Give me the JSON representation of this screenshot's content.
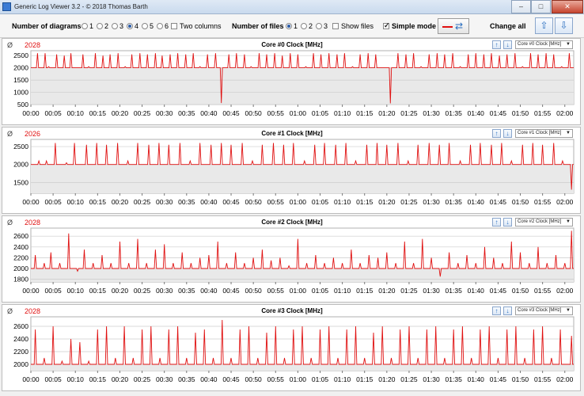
{
  "window": {
    "title": "Generic Log Viewer 3.2 - © 2018 Thomas Barth"
  },
  "toolbar": {
    "diagrams_label": "Number of diagrams",
    "diagram_options": [
      "1",
      "2",
      "3",
      "4",
      "5",
      "6"
    ],
    "diagram_selected": "4",
    "two_columns_label": "Two columns",
    "files_label": "Number of files",
    "file_options": [
      "1",
      "2",
      "3"
    ],
    "file_selected": "1",
    "show_files_label": "Show files",
    "simple_mode_label": "Simple mode",
    "change_all_label": "Change all"
  },
  "colors": {
    "series": "#e01010",
    "grid": "#cccccc",
    "plot_fill": "#e9e9e9"
  },
  "x_ticks": [
    "00:00",
    "00:05",
    "00:10",
    "00:15",
    "00:20",
    "00:25",
    "00:30",
    "00:35",
    "00:40",
    "00:45",
    "00:50",
    "00:55",
    "01:00",
    "01:05",
    "01:10",
    "01:15",
    "01:20",
    "01:25",
    "01:30",
    "01:35",
    "01:40",
    "01:45",
    "01:50",
    "01:55",
    "02:00"
  ],
  "panels": [
    {
      "avg_symbol": "Ø",
      "avg": "2028",
      "title": "Core #0 Clock [MHz]",
      "select": "Core #0 Clock [MHz]",
      "y_ticks": [
        "2500",
        "2000",
        "1500",
        "1000",
        "500"
      ]
    },
    {
      "avg_symbol": "Ø",
      "avg": "2026",
      "title": "Core #1 Clock [MHz]",
      "select": "Core #1 Clock [MHz]",
      "y_ticks": [
        "2500",
        "2000",
        "1500"
      ]
    },
    {
      "avg_symbol": "Ø",
      "avg": "2028",
      "title": "Core #2 Clock [MHz]",
      "select": "Core #2 Clock [MHz]",
      "y_ticks": [
        "2600",
        "2400",
        "2200",
        "2000",
        "1800"
      ]
    },
    {
      "avg_symbol": "Ø",
      "avg": "2028",
      "title": "Core #3 Clock [MHz]",
      "select": "Core #3 Clock [MHz]",
      "y_ticks": [
        "2600",
        "2400",
        "2200",
        "2000"
      ]
    }
  ],
  "chart_data": [
    {
      "type": "line",
      "title": "Core #0 Clock [MHz]",
      "x_range": [
        "00:00",
        "02:02"
      ],
      "ylim": [
        500,
        2700
      ],
      "baseline": 2000,
      "spikes": [
        [
          1.5,
          2600
        ],
        [
          3.2,
          2600
        ],
        [
          4,
          2050
        ],
        [
          5.8,
          2550
        ],
        [
          7.5,
          2500
        ],
        [
          9,
          2600
        ],
        [
          11.7,
          2550
        ],
        [
          13,
          2050
        ],
        [
          14.5,
          2600
        ],
        [
          16.2,
          2500
        ],
        [
          17.8,
          2550
        ],
        [
          19.6,
          2600
        ],
        [
          21.2,
          2050
        ],
        [
          22.7,
          2550
        ],
        [
          24.5,
          2600
        ],
        [
          26.2,
          2550
        ],
        [
          28,
          2600
        ],
        [
          29.5,
          2500
        ],
        [
          31.3,
          2550
        ],
        [
          33,
          2600
        ],
        [
          34.8,
          2550
        ],
        [
          36.5,
          2600
        ],
        [
          38,
          2050
        ],
        [
          39.7,
          2550
        ],
        [
          41.5,
          2600
        ],
        [
          42.8,
          560
        ],
        [
          44.5,
          2550
        ],
        [
          46.2,
          2600
        ],
        [
          48,
          2550
        ],
        [
          49.5,
          2050
        ],
        [
          51.3,
          2600
        ],
        [
          53,
          2550
        ],
        [
          54.8,
          2600
        ],
        [
          56.5,
          2500
        ],
        [
          58.3,
          2600
        ],
        [
          60,
          2550
        ],
        [
          61.8,
          2050
        ],
        [
          63.5,
          2600
        ],
        [
          65.2,
          2550
        ],
        [
          67,
          2600
        ],
        [
          68.8,
          2550
        ],
        [
          70.5,
          2600
        ],
        [
          72.3,
          2050
        ],
        [
          74,
          2550
        ],
        [
          75.8,
          2600
        ],
        [
          77.5,
          2550
        ],
        [
          80.8,
          550
        ],
        [
          82.5,
          2600
        ],
        [
          84.3,
          2550
        ],
        [
          86,
          2600
        ],
        [
          87.7,
          2050
        ],
        [
          89.5,
          2550
        ],
        [
          91.3,
          2600
        ],
        [
          93,
          2550
        ],
        [
          94.8,
          2600
        ],
        [
          96.5,
          2050
        ],
        [
          98.3,
          2550
        ],
        [
          100,
          2600
        ],
        [
          101.8,
          2550
        ],
        [
          103.5,
          2600
        ],
        [
          105.3,
          2500
        ],
        [
          107,
          2550
        ],
        [
          108.8,
          2600
        ],
        [
          110.5,
          2050
        ],
        [
          112.3,
          2600
        ],
        [
          114,
          2550
        ],
        [
          115.8,
          2600
        ],
        [
          117.5,
          2550
        ],
        [
          119.3,
          2050
        ],
        [
          121,
          2600
        ]
      ]
    },
    {
      "type": "line",
      "title": "Core #1 Clock [MHz]",
      "x_range": [
        "00:00",
        "02:02"
      ],
      "ylim": [
        1200,
        2700
      ],
      "baseline": 2000,
      "spikes": [
        [
          1.8,
          2100
        ],
        [
          3.5,
          2100
        ],
        [
          5.5,
          2600
        ],
        [
          8,
          2050
        ],
        [
          9.8,
          2600
        ],
        [
          12.5,
          2550
        ],
        [
          14.8,
          2600
        ],
        [
          17,
          2550
        ],
        [
          19.5,
          2600
        ],
        [
          21.8,
          2100
        ],
        [
          24,
          2600
        ],
        [
          26.5,
          2550
        ],
        [
          28.8,
          2600
        ],
        [
          31,
          2550
        ],
        [
          33.5,
          2600
        ],
        [
          35.8,
          2100
        ],
        [
          38,
          2600
        ],
        [
          40.5,
          2550
        ],
        [
          42.8,
          2600
        ],
        [
          45,
          2550
        ],
        [
          47.5,
          2600
        ],
        [
          49.8,
          2100
        ],
        [
          52,
          2550
        ],
        [
          54.5,
          2600
        ],
        [
          56.8,
          2550
        ],
        [
          59,
          2600
        ],
        [
          61.5,
          2100
        ],
        [
          63.8,
          2550
        ],
        [
          66,
          2600
        ],
        [
          68.5,
          2550
        ],
        [
          70.8,
          2600
        ],
        [
          73,
          2100
        ],
        [
          75.5,
          2550
        ],
        [
          77.8,
          2600
        ],
        [
          80,
          2550
        ],
        [
          82.5,
          2600
        ],
        [
          84.8,
          2100
        ],
        [
          87,
          2550
        ],
        [
          89.5,
          2600
        ],
        [
          91.8,
          2550
        ],
        [
          94,
          2600
        ],
        [
          96.5,
          2100
        ],
        [
          98.8,
          2550
        ],
        [
          101,
          2600
        ],
        [
          103.5,
          2550
        ],
        [
          105.8,
          2600
        ],
        [
          108,
          2100
        ],
        [
          110.5,
          2550
        ],
        [
          112.8,
          2600
        ],
        [
          115,
          2550
        ],
        [
          117.5,
          2600
        ],
        [
          119.5,
          2100
        ],
        [
          121.5,
          1300
        ]
      ]
    },
    {
      "type": "line",
      "title": "Core #2 Clock [MHz]",
      "x_range": [
        "00:00",
        "02:02"
      ],
      "ylim": [
        1750,
        2750
      ],
      "baseline": 2000,
      "spikes": [
        [
          1,
          2250
        ],
        [
          3,
          2100
        ],
        [
          4.5,
          2300
        ],
        [
          6.5,
          2100
        ],
        [
          8.5,
          2650
        ],
        [
          10.5,
          1950
        ],
        [
          12,
          2350
        ],
        [
          14,
          2100
        ],
        [
          16,
          2250
        ],
        [
          18,
          2100
        ],
        [
          20,
          2500
        ],
        [
          22,
          2100
        ],
        [
          24,
          2550
        ],
        [
          26,
          2100
        ],
        [
          28,
          2350
        ],
        [
          30,
          2450
        ],
        [
          32,
          2100
        ],
        [
          34,
          2300
        ],
        [
          36,
          2100
        ],
        [
          38,
          2200
        ],
        [
          40,
          2250
        ],
        [
          42,
          2500
        ],
        [
          44,
          2100
        ],
        [
          46,
          2300
        ],
        [
          48,
          2100
        ],
        [
          50,
          2200
        ],
        [
          52,
          2350
        ],
        [
          54,
          2150
        ],
        [
          56,
          2200
        ],
        [
          58,
          2050
        ],
        [
          60,
          2550
        ],
        [
          62,
          2100
        ],
        [
          64,
          2250
        ],
        [
          66,
          2100
        ],
        [
          68,
          2200
        ],
        [
          70,
          2100
        ],
        [
          72,
          2350
        ],
        [
          74,
          2100
        ],
        [
          76,
          2250
        ],
        [
          78,
          2200
        ],
        [
          80,
          2300
        ],
        [
          82,
          2100
        ],
        [
          84,
          2500
        ],
        [
          86,
          2100
        ],
        [
          88,
          2550
        ],
        [
          90,
          2200
        ],
        [
          92,
          1850
        ],
        [
          94,
          2300
        ],
        [
          96,
          2100
        ],
        [
          98,
          2250
        ],
        [
          100,
          2100
        ],
        [
          102,
          2400
        ],
        [
          104,
          2200
        ],
        [
          106,
          2100
        ],
        [
          108,
          2500
        ],
        [
          110,
          2300
        ],
        [
          112,
          2100
        ],
        [
          114,
          2400
        ],
        [
          116,
          2100
        ],
        [
          118,
          2250
        ],
        [
          120,
          2100
        ],
        [
          121.5,
          2700
        ]
      ]
    },
    {
      "type": "line",
      "title": "Core #3 Clock [MHz]",
      "x_range": [
        "00:00",
        "02:02"
      ],
      "ylim": [
        1900,
        2750
      ],
      "baseline": 2000,
      "spikes": [
        [
          1,
          2550
        ],
        [
          3,
          2100
        ],
        [
          5,
          2600
        ],
        [
          7,
          2050
        ],
        [
          9,
          2400
        ],
        [
          11,
          2350
        ],
        [
          13,
          2050
        ],
        [
          15,
          2550
        ],
        [
          17,
          2600
        ],
        [
          19,
          2100
        ],
        [
          21,
          2600
        ],
        [
          23,
          2100
        ],
        [
          25,
          2550
        ],
        [
          27,
          2600
        ],
        [
          29,
          2100
        ],
        [
          31,
          2550
        ],
        [
          33,
          2600
        ],
        [
          35,
          2100
        ],
        [
          37,
          2500
        ],
        [
          39,
          2550
        ],
        [
          41,
          2100
        ],
        [
          43,
          2700
        ],
        [
          45,
          2100
        ],
        [
          47,
          2550
        ],
        [
          49,
          2600
        ],
        [
          51,
          2100
        ],
        [
          53,
          2500
        ],
        [
          55,
          2600
        ],
        [
          57,
          2100
        ],
        [
          59,
          2550
        ],
        [
          61,
          2600
        ],
        [
          63,
          2100
        ],
        [
          65,
          2550
        ],
        [
          67,
          2600
        ],
        [
          69,
          2100
        ],
        [
          71,
          2550
        ],
        [
          73,
          2600
        ],
        [
          75,
          2100
        ],
        [
          77,
          2500
        ],
        [
          79,
          2600
        ],
        [
          81,
          2100
        ],
        [
          83,
          2550
        ],
        [
          85,
          2600
        ],
        [
          87,
          2100
        ],
        [
          89,
          2550
        ],
        [
          91,
          2600
        ],
        [
          93,
          2100
        ],
        [
          95,
          2550
        ],
        [
          97,
          2600
        ],
        [
          99,
          2100
        ],
        [
          101,
          2550
        ],
        [
          103,
          2600
        ],
        [
          105,
          2100
        ],
        [
          107,
          2550
        ],
        [
          109,
          2600
        ],
        [
          111,
          2100
        ],
        [
          113,
          2550
        ],
        [
          115,
          2600
        ],
        [
          117,
          2100
        ],
        [
          119,
          2550
        ],
        [
          121.5,
          2450
        ]
      ]
    }
  ]
}
